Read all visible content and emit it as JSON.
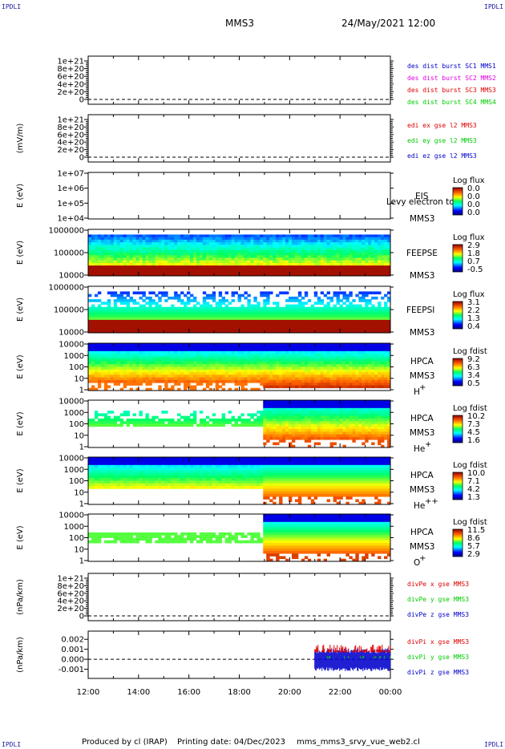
{
  "corners": {
    "tl": "IPDLI",
    "tr": "IPDLI",
    "bl": "IPDLI",
    "br": "IPDLI"
  },
  "header": {
    "mission": "MMS3",
    "date": "24/May/2021 12:00"
  },
  "footer": {
    "produced": "Produced by cl (IRAP)",
    "printed": "Printing date: 04/Dec/2023",
    "file": "mms_mms3_srvy_vue_web2.cl"
  },
  "colors": {
    "red": "#e00000",
    "magenta": "#e000e0",
    "green": "#00cc00",
    "blue": "#0000cc"
  },
  "chart_data": [
    {
      "type": "line",
      "id": "p1",
      "ylabel": "",
      "yticks": [
        "1e+21",
        "8e+20",
        "6e+20",
        "4e+20",
        "2e+20",
        "0"
      ],
      "legend": [
        {
          "text": "des dist burst SC1 MMS1",
          "color": "#0000cc"
        },
        {
          "text": "des dist burst SC2 MMS2",
          "color": "#e000e0"
        },
        {
          "text": "des dist burst SC3 MMS3",
          "color": "#e00000"
        },
        {
          "text": "des dist burst SC4 MMS4",
          "color": "#00cc00"
        }
      ],
      "series": []
    },
    {
      "type": "line",
      "id": "p2",
      "ylabel": "(mV/m)",
      "yticks": [
        "1e+21",
        "8e+20",
        "6e+20",
        "4e+20",
        "2e+20",
        "0"
      ],
      "legend": [
        {
          "text": "edi ex gse l2 MMS3",
          "color": "#e00000"
        },
        {
          "text": "edi ey gse l2 MMS3",
          "color": "#00cc00"
        },
        {
          "text": "edi ez gse l2 MMS3",
          "color": "#0000cc"
        }
      ],
      "series": []
    },
    {
      "type": "heatmap",
      "id": "p3",
      "ylabel": "E (eV)",
      "yticks": [
        "1e+07",
        "1e+06",
        "1e+05",
        "1e+04"
      ],
      "instrument": [
        "EIS",
        "MMS3"
      ],
      "overlay": "Levy electron to",
      "cb_title": "Log flux",
      "cb_values": [
        "0.0",
        "0.0",
        "0.0",
        "0.0"
      ],
      "empty": true
    },
    {
      "type": "heatmap",
      "id": "p4",
      "ylabel": "E (eV)",
      "yticks": [
        "1000000",
        "100000",
        "10000"
      ],
      "instrument": [
        "FEEPSE",
        "MMS3"
      ],
      "cb_title": "Log flux",
      "cb_values": [
        "2.9",
        "1.8",
        "0.7",
        "-0.5"
      ]
    },
    {
      "type": "heatmap",
      "id": "p5",
      "ylabel": "E (eV)",
      "yticks": [
        "1000000",
        "100000",
        "10000"
      ],
      "instrument": [
        "FEEPSI",
        "MMS3"
      ],
      "cb_title": "Log flux",
      "cb_values": [
        "3.1",
        "2.2",
        "1.3",
        "0.4"
      ]
    },
    {
      "type": "heatmap",
      "id": "p6",
      "ylabel": "E (eV)",
      "yticks": [
        "10000",
        "1000",
        "100",
        "10",
        "1"
      ],
      "instrument": [
        "HPCA",
        "MMS3"
      ],
      "species": "H",
      "species_sup": "+",
      "cb_title": "Log fdist",
      "cb_values": [
        "9.2",
        "6.3",
        "3.4",
        "0.5"
      ]
    },
    {
      "type": "heatmap",
      "id": "p7",
      "ylabel": "E (eV)",
      "yticks": [
        "10000",
        "1000",
        "100",
        "10",
        "1"
      ],
      "instrument": [
        "HPCA",
        "MMS3"
      ],
      "species": "He",
      "species_sup": "+",
      "cb_title": "Log fdist",
      "cb_values": [
        "10.2",
        "7.3",
        "4.5",
        "1.6"
      ]
    },
    {
      "type": "heatmap",
      "id": "p8",
      "ylabel": "E (eV)",
      "yticks": [
        "10000",
        "1000",
        "100",
        "10",
        "1"
      ],
      "instrument": [
        "HPCA",
        "MMS3"
      ],
      "species": "He",
      "species_sup": "++",
      "cb_title": "Log fdist",
      "cb_values": [
        "10.0",
        "7.1",
        "4.2",
        "1.3"
      ]
    },
    {
      "type": "heatmap",
      "id": "p9",
      "ylabel": "E (eV)",
      "yticks": [
        "10000",
        "1000",
        "100",
        "10",
        "1"
      ],
      "instrument": [
        "HPCA",
        "MMS3"
      ],
      "species": "O",
      "species_sup": "+",
      "cb_title": "Log fdist",
      "cb_values": [
        "11.5",
        "8.6",
        "5.7",
        "2.9"
      ]
    },
    {
      "type": "line",
      "id": "p10",
      "ylabel": "(nPa/km)",
      "yticks": [
        "1e+21",
        "8e+20",
        "6e+20",
        "4e+20",
        "2e+20",
        "0"
      ],
      "legend": [
        {
          "text": "divPe x gse MMS3",
          "color": "#e00000"
        },
        {
          "text": "divPe y gse MMS3",
          "color": "#00cc00"
        },
        {
          "text": "divPe z gse MMS3",
          "color": "#0000cc"
        }
      ],
      "series": []
    },
    {
      "type": "line",
      "id": "p11",
      "ylabel": "(nPa/km)",
      "yticks": [
        "0.002",
        "0.001",
        "0.000",
        "-0.001"
      ],
      "ylim": [
        -0.0016,
        0.0025
      ],
      "legend": [
        {
          "text": "divPi x gse MMS3",
          "color": "#e00000"
        },
        {
          "text": "divPi y gse MMS3",
          "color": "#00cc00"
        },
        {
          "text": "divPi z gse MMS3",
          "color": "#0000cc"
        }
      ],
      "x_start": "21:00",
      "x_end": "00:00"
    }
  ],
  "xaxis": {
    "ticks": [
      "12:00",
      "14:00",
      "16:00",
      "18:00",
      "20:00",
      "22:00",
      "00:00"
    ]
  }
}
